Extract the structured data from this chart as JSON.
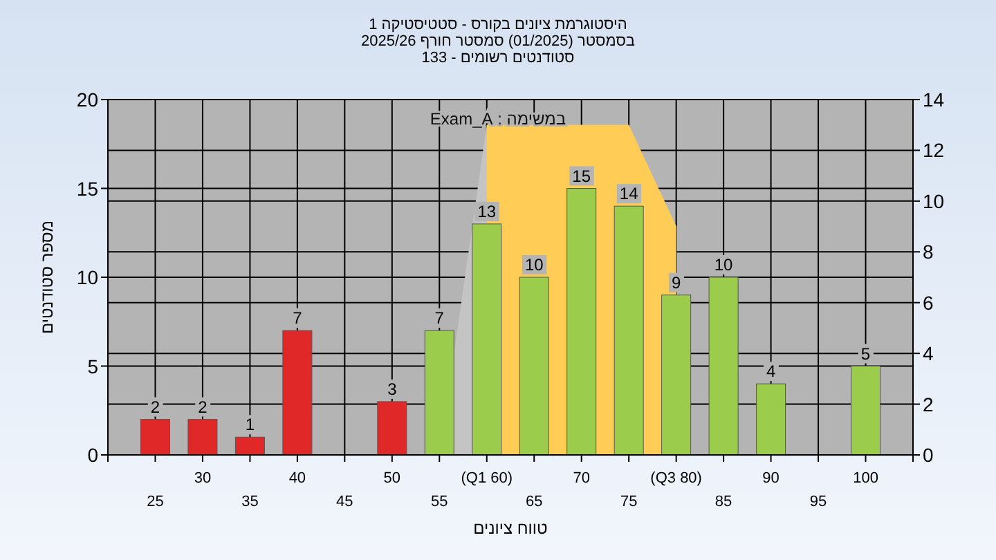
{
  "chart_data": {
    "type": "bar",
    "title": "היסטוגרמת ציונים בקורס - סטטיסטיקה 1",
    "subtitle": "בסמסטר  (01/2025)  סמסטר חורף 2025/26\nסטודנטים רשומים - 133",
    "xlabel": "טווח ציונים",
    "ylabel": "מספר סטודנטים",
    "annotations": [
      "במשימה : Exam_A"
    ],
    "categories": [
      "25",
      "30",
      "35",
      "40",
      "45",
      "50",
      "55",
      "(Q1 60)",
      "65",
      "70",
      "75",
      "(Q3 80)",
      "85",
      "90",
      "95",
      "100"
    ],
    "series": [
      {
        "type": "area",
        "axis": "y2",
        "color": "#c4c4c4",
        "values": [
          null,
          null,
          null,
          null,
          null,
          null,
          0,
          13,
          13,
          13,
          13,
          9,
          null,
          null,
          null,
          null
        ]
      },
      {
        "type": "area",
        "axis": "y2",
        "color": "#ffcc55",
        "values": [
          null,
          null,
          null,
          null,
          null,
          null,
          null,
          13,
          13,
          13,
          13,
          9,
          null,
          null,
          null,
          null
        ]
      },
      {
        "colors": [
          "#e02828",
          "#e02828",
          "#e02828",
          "#e02828",
          null,
          "#e02828",
          "#9ccc4c",
          "#9ccc4c",
          "#9ccc4c",
          "#9ccc4c",
          "#9ccc4c",
          "#9ccc4c",
          "#9ccc4c",
          "#9ccc4c",
          null,
          "#9ccc4c"
        ],
        "values": [
          2,
          2,
          1,
          7,
          null,
          3,
          7,
          13,
          10,
          15,
          14,
          9,
          10,
          4,
          null,
          5
        ],
        "value_labels": [
          "2",
          "2",
          "1",
          "7",
          null,
          "3",
          "7",
          "13",
          "10",
          "15",
          "14",
          "9",
          "10",
          "4",
          null,
          "5"
        ]
      }
    ],
    "grid": true,
    "ylim": [
      0,
      20
    ],
    "yticks": [
      0,
      5,
      10,
      15,
      20
    ],
    "y2lim": [
      0,
      14
    ],
    "y2ticks": [
      0,
      2,
      4,
      6,
      8,
      10,
      12,
      14
    ]
  }
}
